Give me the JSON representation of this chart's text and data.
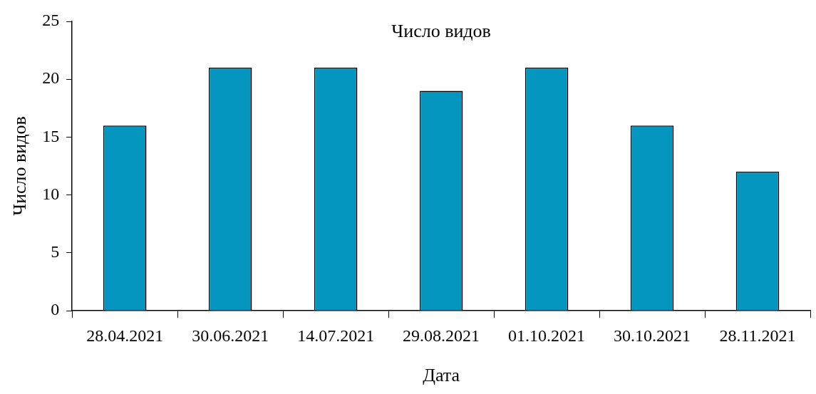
{
  "chart_data": {
    "type": "bar",
    "title": "Число видов",
    "xlabel": "Дата",
    "ylabel": "Число видов",
    "categories": [
      "28.04.2021",
      "30.06.2021",
      "14.07.2021",
      "29.08.2021",
      "01.10.2021",
      "30.10.2021",
      "28.11.2021"
    ],
    "values": [
      16,
      21,
      21,
      19,
      21,
      16,
      12
    ],
    "color": "#0596c0",
    "ylim": [
      0,
      25
    ],
    "yticks": [
      0,
      5,
      10,
      15,
      20,
      25
    ],
    "grid": false,
    "legend": false
  }
}
